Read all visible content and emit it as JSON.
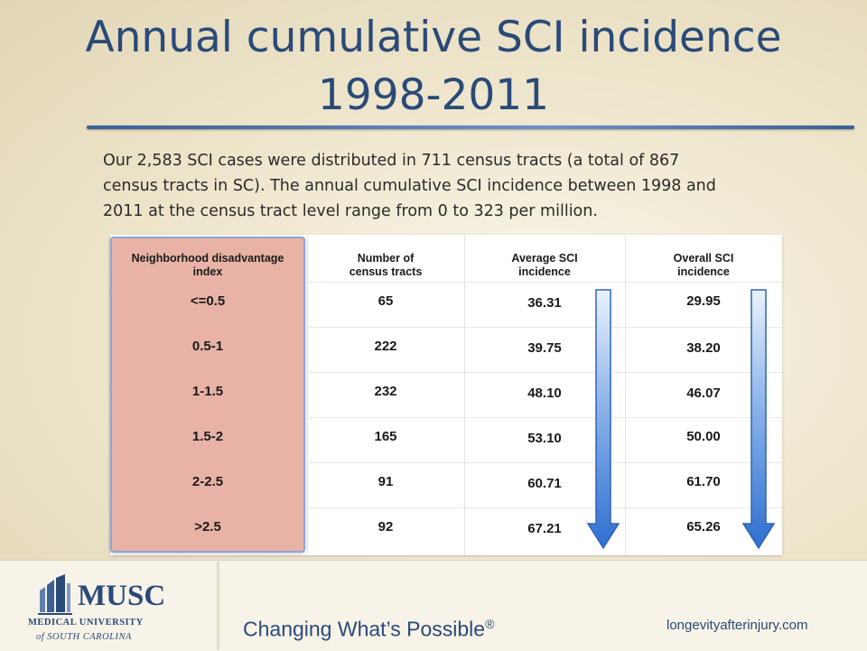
{
  "slide": {
    "title_line1": "Annual cumulative SCI incidence",
    "title_line2": "1998-2011",
    "intro_line1": "Our 2,583 SCI cases were distributed in 711 census tracts (a total of 867",
    "intro_line2": "census tracts in SC). The annual cumulative SCI incidence between 1998 and",
    "intro_line3": "2011 at the census tract level range from 0 to 323 per million."
  },
  "table": {
    "headers": [
      {
        "line1": "Neighborhood disadvantage",
        "line2": "index"
      },
      {
        "line1": "Number of",
        "line2": "census tracts"
      },
      {
        "line1": "Average SCI",
        "line2": "incidence"
      },
      {
        "line1": "Overall SCI",
        "line2": "incidence"
      }
    ],
    "rows": [
      {
        "index": "<=0.5",
        "tracts": "65",
        "avg": "36.31",
        "overall": "29.95"
      },
      {
        "index": "0.5-1",
        "tracts": "222",
        "avg": "39.75",
        "overall": "38.20"
      },
      {
        "index": "1-1.5",
        "tracts": "232",
        "avg": "48.10",
        "overall": "46.07"
      },
      {
        "index": "1.5-2",
        "tracts": "165",
        "avg": "53.10",
        "overall": "50.00"
      },
      {
        "index": "2-2.5",
        "tracts": "91",
        "avg": "60.71",
        "overall": "61.70"
      },
      {
        "index": ">2.5",
        "tracts": "92",
        "avg": "67.21",
        "overall": "65.26"
      }
    ]
  },
  "footer": {
    "logo_main": "MUSC",
    "logo_line2": "MEDICAL UNIVERSITY",
    "logo_line3": "of SOUTH CAROLINA",
    "tagline": "Changing What’s Possible",
    "tagline_mark": "®",
    "website": "longevityafterinjury.com"
  },
  "colors": {
    "title": "#2a4a78",
    "highlight_column": "#e8b3a6",
    "arrow_blue": "#3f7fd6"
  },
  "icons": [
    "down-arrow-icon",
    "down-arrow-icon",
    "musc-building-logo-icon"
  ]
}
